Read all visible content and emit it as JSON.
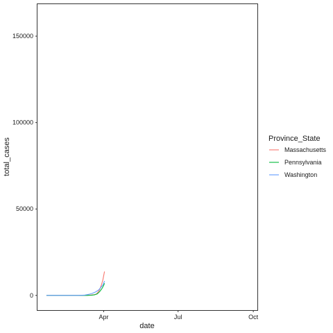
{
  "chart_data": {
    "type": "line",
    "xlabel": "date",
    "ylabel": "total_cases",
    "x_ticks": [
      {
        "date": "2020-04-01",
        "label": "Apr"
      },
      {
        "date": "2020-07-01",
        "label": "Jul"
      },
      {
        "date": "2020-10-01",
        "label": "Oct"
      }
    ],
    "xlim": [
      "2020-01-11",
      "2020-10-06"
    ],
    "y_ticks": [
      {
        "value": 0,
        "label": "0"
      },
      {
        "value": 50000,
        "label": "50000"
      },
      {
        "value": 100000,
        "label": "100000"
      },
      {
        "value": 150000,
        "label": "150000"
      }
    ],
    "ylim": [
      -8500,
      168500
    ],
    "grid": false,
    "legend": {
      "title": "Province_State",
      "placement": "right"
    },
    "series": [
      {
        "name": "Massachusetts",
        "color": "#F8766D",
        "points": [
          {
            "x": "2020-01-22",
            "y": 0
          },
          {
            "x": "2020-02-15",
            "y": 1
          },
          {
            "x": "2020-03-01",
            "y": 1
          },
          {
            "x": "2020-03-10",
            "y": 92
          },
          {
            "x": "2020-03-15",
            "y": 164
          },
          {
            "x": "2020-03-20",
            "y": 413
          },
          {
            "x": "2020-03-23",
            "y": 777
          },
          {
            "x": "2020-03-25",
            "y": 1838
          },
          {
            "x": "2020-03-27",
            "y": 3240
          },
          {
            "x": "2020-03-29",
            "y": 5752
          },
          {
            "x": "2020-03-31",
            "y": 8966
          },
          {
            "x": "2020-04-02",
            "y": 13837
          }
        ]
      },
      {
        "name": "Pennsylvania",
        "color": "#00BA38",
        "points": [
          {
            "x": "2020-01-22",
            "y": 0
          },
          {
            "x": "2020-03-06",
            "y": 2
          },
          {
            "x": "2020-03-12",
            "y": 22
          },
          {
            "x": "2020-03-17",
            "y": 96
          },
          {
            "x": "2020-03-21",
            "y": 371
          },
          {
            "x": "2020-03-24",
            "y": 851
          },
          {
            "x": "2020-03-26",
            "y": 1687
          },
          {
            "x": "2020-03-28",
            "y": 2751
          },
          {
            "x": "2020-03-30",
            "y": 4087
          },
          {
            "x": "2020-04-01",
            "y": 5805
          },
          {
            "x": "2020-04-02",
            "y": 7016
          }
        ]
      },
      {
        "name": "Washington",
        "color": "#619CFF",
        "points": [
          {
            "x": "2020-01-22",
            "y": 1
          },
          {
            "x": "2020-02-20",
            "y": 1
          },
          {
            "x": "2020-03-01",
            "y": 18
          },
          {
            "x": "2020-03-08",
            "y": 136
          },
          {
            "x": "2020-03-14",
            "y": 642
          },
          {
            "x": "2020-03-18",
            "y": 1187
          },
          {
            "x": "2020-03-22",
            "y": 1996
          },
          {
            "x": "2020-03-26",
            "y": 3207
          },
          {
            "x": "2020-03-29",
            "y": 4896
          },
          {
            "x": "2020-03-31",
            "y": 5984
          },
          {
            "x": "2020-04-02",
            "y": 8311
          }
        ]
      }
    ]
  }
}
